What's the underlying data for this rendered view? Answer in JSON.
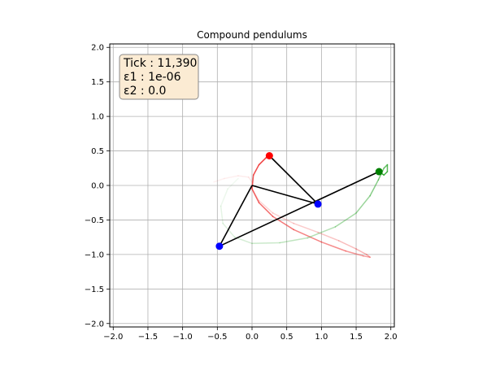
{
  "chart_data": {
    "type": "line",
    "title": "Compound pendulums",
    "xlabel": "",
    "ylabel": "",
    "xlim": [
      -2.05,
      2.05
    ],
    "ylim": [
      -2.05,
      2.05
    ],
    "xticks": [
      -2.0,
      -1.5,
      -1.0,
      -0.5,
      0.0,
      0.5,
      1.0,
      1.5,
      2.0
    ],
    "yticks": [
      -2.0,
      -1.5,
      -1.0,
      -0.5,
      0.0,
      0.5,
      1.0,
      1.5,
      2.0
    ],
    "xtick_labels": [
      "−2.0",
      "−1.5",
      "−1.0",
      "−0.5",
      "0.0",
      "0.5",
      "1.0",
      "1.5",
      "2.0"
    ],
    "ytick_labels": [
      "−2.0",
      "−1.5",
      "−1.0",
      "−0.5",
      "0.0",
      "0.5",
      "1.0",
      "1.5",
      "2.0"
    ],
    "grid": true,
    "info_box": {
      "lines": [
        "Tick : 11,390",
        "ε1 : 1e-06",
        "ε2 : 0.0"
      ],
      "background": "#fbebd3",
      "border": "#8a8a8a"
    },
    "colors": {
      "red_trail": "#ee3333",
      "green_trail": "#33aa33",
      "arm": "#000000",
      "red_bob": "#ff0000",
      "green_bob": "#008000",
      "blue_bob": "#0000ff",
      "grid": "#b0b0b0"
    },
    "pivot": [
      0.0,
      0.0
    ],
    "pendulums": [
      {
        "bob1": [
          0.95,
          -0.27
        ],
        "bob2": [
          0.25,
          0.43
        ],
        "bob1_color": "blue",
        "bob2_color": "red",
        "trail_color": "red_trail",
        "trail": [
          [
            -0.55,
            0.05
          ],
          [
            -0.4,
            0.1
          ],
          [
            -0.2,
            0.14
          ],
          [
            -0.05,
            0.12
          ],
          [
            0.0,
            0.05
          ],
          [
            0.0,
            -0.05
          ],
          [
            0.1,
            -0.22
          ],
          [
            0.3,
            -0.4
          ],
          [
            0.6,
            -0.55
          ],
          [
            0.95,
            -0.68
          ],
          [
            1.25,
            -0.8
          ],
          [
            1.5,
            -0.92
          ],
          [
            1.65,
            -1.0
          ],
          [
            1.7,
            -1.04
          ],
          [
            1.6,
            -1.02
          ],
          [
            1.35,
            -0.95
          ],
          [
            1.0,
            -0.82
          ],
          [
            0.6,
            -0.64
          ],
          [
            0.3,
            -0.45
          ],
          [
            0.1,
            -0.25
          ],
          [
            0.0,
            -0.05
          ],
          [
            0.02,
            0.15
          ],
          [
            0.1,
            0.3
          ],
          [
            0.2,
            0.4
          ],
          [
            0.25,
            0.43
          ]
        ]
      },
      {
        "bob1": [
          -0.47,
          -0.88
        ],
        "bob2": [
          1.83,
          0.2
        ],
        "bob1_color": "blue",
        "bob2_color": "green",
        "trail_color": "green_trail",
        "trail": [
          [
            -0.2,
            0.1
          ],
          [
            -0.35,
            -0.05
          ],
          [
            -0.45,
            -0.3
          ],
          [
            -0.42,
            -0.55
          ],
          [
            -0.25,
            -0.75
          ],
          [
            0.0,
            -0.84
          ],
          [
            0.4,
            -0.83
          ],
          [
            0.8,
            -0.76
          ],
          [
            1.2,
            -0.6
          ],
          [
            1.5,
            -0.4
          ],
          [
            1.7,
            -0.15
          ],
          [
            1.82,
            0.08
          ],
          [
            1.9,
            0.25
          ],
          [
            1.95,
            0.3
          ],
          [
            1.95,
            0.2
          ],
          [
            1.9,
            0.15
          ],
          [
            1.83,
            0.2
          ]
        ]
      }
    ]
  }
}
